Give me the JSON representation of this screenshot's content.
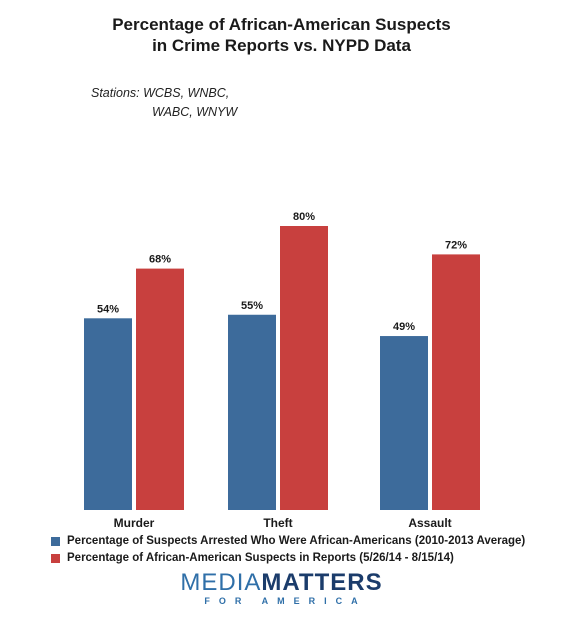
{
  "title_lines": [
    "Percentage of African-American Suspects",
    "in Crime Reports vs. NYPD Data"
  ],
  "stations": {
    "line1": "Stations:  WCBS, WNBC,",
    "line2": "WABC, WNYW"
  },
  "chart_data": {
    "type": "bar",
    "categories": [
      "Murder",
      "Theft",
      "Assault"
    ],
    "series": [
      {
        "name": "Percentage of Suspects Arrested Who Were African-Americans (2010-2013 Average)",
        "values": [
          54,
          55,
          49
        ],
        "labels": [
          "54%",
          "55%",
          "49%"
        ],
        "color": "#3d6b9b"
      },
      {
        "name": "Percentage of African-American Suspects in Reports (5/26/14 - 8/15/14)",
        "values": [
          68,
          80,
          72
        ],
        "labels": [
          "68%",
          "80%",
          "72%"
        ],
        "color": "#c8403e"
      }
    ],
    "ylim": [
      0,
      100
    ],
    "grid": false,
    "legend_position": "bottom-left"
  },
  "legend": [
    {
      "label": "Percentage of Suspects Arrested Who Were African-Americans (2010-2013 Average)",
      "color": "#3d6b9b"
    },
    {
      "label": "Percentage of African-American Suspects in Reports (5/26/14 - 8/15/14)",
      "color": "#c8403e"
    }
  ],
  "logo": {
    "media": "MEDIA",
    "matters": "MATTERS",
    "sub": "FOR AMERICA"
  }
}
